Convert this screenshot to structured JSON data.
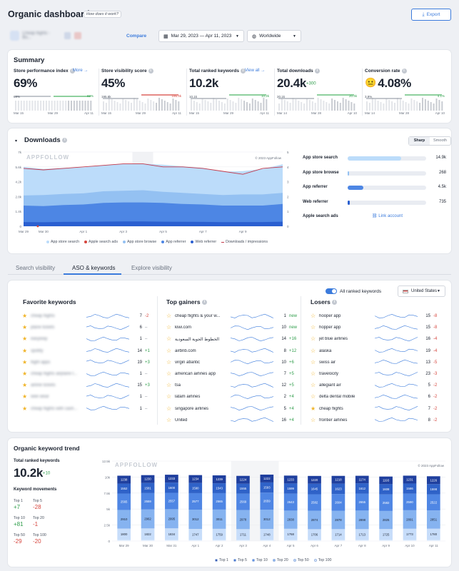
{
  "header": {
    "title": "Organic dashboard",
    "help_label": "How does it work?",
    "export_label": "Export"
  },
  "filters": {
    "app_name": "Cheap flights - Bo...",
    "compare_label": "Compare",
    "date_range": "Mar 29, 2023 — Apr 11, 2023",
    "region": "Worldwide"
  },
  "summary": {
    "title": "Summary",
    "metrics": [
      {
        "label": "Store performance index",
        "link": "More →",
        "value": "69%",
        "delta": "",
        "left_value": "69%",
        "right_value": "69%",
        "x_labels": [
          "Mar 15",
          "Mar 29",
          "Apr 11"
        ]
      },
      {
        "label": "Store visibility score",
        "link": "",
        "value": "45%",
        "delta": "",
        "left_value": "195.6k",
        "right_value": "195.4k",
        "x_labels": [
          "Mar 15",
          "Mar 29",
          "Apr 11"
        ]
      },
      {
        "label": "Total ranked keywords",
        "link": "View all →",
        "value": "10.2k",
        "delta": "",
        "left_value": "10.1k",
        "right_value": "10.2k",
        "x_labels": [
          "Mar 15",
          "Mar 29",
          "Apr 11"
        ]
      },
      {
        "label": "Total downloads",
        "link": "",
        "value": "20.4k",
        "delta": "+300",
        "left_value": "20.1k",
        "right_value": "20.4k",
        "x_labels": [
          "Mar 14",
          "Mar 28",
          "Apr 10"
        ]
      },
      {
        "label": "Conversion rate",
        "link": "",
        "value": "4.08%",
        "delta": "",
        "left_value": "3.9%",
        "right_value": "4.1%",
        "x_labels": [
          "Mar 14",
          "Mar 28",
          "Apr 10"
        ]
      }
    ]
  },
  "downloads": {
    "title": "Downloads",
    "toggle": [
      "Sharp",
      "Smooth"
    ],
    "watermark": "APPFOLLOW",
    "copyright": "© 2023 AppFollow",
    "legend": [
      "App store search",
      "Apple search ads",
      "App store browse",
      "App referrer",
      "Web referrer",
      "Downloads / impressions"
    ],
    "sources": [
      {
        "label": "App store search",
        "value": "14.9k",
        "pct": 0.68
      },
      {
        "label": "App store browse",
        "value": "268",
        "pct": 0.01
      },
      {
        "label": "App referrer",
        "value": "4.5k",
        "pct": 0.2
      },
      {
        "label": "Web referrer",
        "value": "735",
        "pct": 0.03
      },
      {
        "label": "Apple search ads",
        "value": "",
        "pct": 0
      }
    ],
    "link_account": "Link account"
  },
  "chart_data": [
    {
      "type": "area",
      "title": "",
      "x": [
        "Mar 29",
        "Mar 30",
        "Mar 31",
        "Apr 1",
        "Apr 2",
        "Apr 3",
        "Apr 4",
        "Apr 5",
        "Apr 6",
        "Apr 7",
        "Apr 8",
        "Apr 9",
        "Apr 10",
        "Apr 11"
      ],
      "x_ticks": [
        "Mar 29",
        "Mar 30",
        "Apr 1",
        "Apr 3",
        "Apr 5",
        "Apr 7",
        "Apr 9"
      ],
      "y_ticks": [
        "0",
        "1.4k",
        "2.8k",
        "4.2k",
        "5.6k",
        "7k"
      ],
      "y2_ticks": [
        "0",
        "1",
        "2",
        "3",
        "4",
        "5"
      ],
      "ylim": [
        0,
        7000
      ],
      "series": [
        {
          "name": "App store search",
          "values": [
            5600,
            5400,
            5500,
            5550,
            5750,
            5900,
            5900,
            5800,
            5650,
            5500,
            5150,
            5200,
            5400,
            5850
          ]
        },
        {
          "name": "App store browse",
          "values": [
            2900,
            2950,
            3050,
            3100,
            3300,
            3350,
            3400,
            3250,
            3150,
            3050,
            2950,
            3000,
            3000,
            3150
          ]
        },
        {
          "name": "App referrer",
          "values": [
            1950,
            1900,
            2000,
            2050,
            2200,
            2250,
            2250,
            2200,
            2100,
            2050,
            1950,
            1950,
            1950,
            2100
          ]
        },
        {
          "name": "Web referrer",
          "values": [
            400,
            380,
            410,
            420,
            440,
            450,
            450,
            430,
            420,
            410,
            390,
            400,
            400,
            430
          ]
        },
        {
          "name": "Downloads / impressions",
          "values": [
            3.9,
            3.8,
            3.9,
            4.0,
            4.1,
            4.2,
            4.2,
            4.0,
            4.0,
            3.9,
            3.7,
            3.5,
            3.9,
            4.0
          ]
        }
      ]
    },
    {
      "type": "bar",
      "title": "",
      "categories": [
        "Mar 29",
        "Mar 30",
        "Mar 31",
        "Apr 1",
        "Apr 2",
        "Apr 3",
        "Apr 4",
        "Apr 5",
        "Apr 6",
        "Apr 7",
        "Apr 8",
        "Apr 9",
        "Apr 10",
        "Apr 11"
      ],
      "y_ticks": [
        "0",
        "2.5k",
        "5k",
        "7.5k",
        "10k",
        "12.5k"
      ],
      "ylim": [
        0,
        12500
      ],
      "series": [
        {
          "name": "Top 1",
          "values": [
            1238,
            1230,
            1233,
            1234,
            1239,
            1224,
            1222,
            1233,
            1220,
            1218,
            1174,
            1193,
            1231,
            1226
          ]
        },
        {
          "name": "Top 5",
          "values": [
            1552,
            1581,
            1600,
            1590,
            1543,
            1555,
            1593,
            1599,
            1645,
            1623,
            1612,
            1608,
            1586,
            1598
          ]
        },
        {
          "name": "Top 10",
          "values": [
            2565,
            2559,
            2557,
            2577,
            2565,
            2569,
            2659,
            2643,
            2582,
            2604,
            2655,
            2582,
            2590,
            2522
          ]
        },
        {
          "name": "Top 20",
          "values": [
            2910,
            2962,
            2995,
            3012,
            3011,
            2978,
            3012,
            2838,
            2874,
            2878,
            2898,
            2825,
            2891,
            2851
          ]
        },
        {
          "name": "Top 50",
          "values": [
            1800,
            1822,
            1834,
            1747,
            1759,
            1711,
            1748,
            1768,
            1706,
            1714,
            1713,
            1725,
            1773,
            1780
          ]
        },
        {
          "name": "Top 100",
          "values": [
            150,
            150,
            150,
            150,
            150,
            150,
            150,
            150,
            150,
            150,
            150,
            150,
            150,
            150
          ]
        }
      ]
    }
  ],
  "keywords_tabs": {
    "tabs": [
      "Search visibility",
      "ASO & keywords",
      "Explore visibility"
    ],
    "active": 1
  },
  "keywords": {
    "toggle_label": "All ranked keywords",
    "country": "United States",
    "favorite": {
      "title": "Favorite keywords",
      "rows": [
        {
          "name": "cheap flights",
          "rank": "7",
          "chg": "-2"
        },
        {
          "name": "plane tickets",
          "rank": "6",
          "chg": "–"
        },
        {
          "name": "easyway",
          "rank": "1",
          "chg": "–"
        },
        {
          "name": "spotify",
          "rank": "14",
          "chg": "+1"
        },
        {
          "name": "flight apps",
          "rank": "19",
          "chg": "+3"
        },
        {
          "name": "cheap flights airplane t...",
          "rank": "1",
          "chg": "–"
        },
        {
          "name": "airline tickets",
          "rank": "15",
          "chg": "+3"
        },
        {
          "name": "wee wear",
          "rank": "1",
          "chg": "–"
        },
        {
          "name": "cheap flights with cash...",
          "rank": "1",
          "chg": "–"
        }
      ]
    },
    "gainers": {
      "title": "Top gainers",
      "rows": [
        {
          "name": "cheap flights & your w...",
          "rank": "1",
          "chg": "new"
        },
        {
          "name": "kiwi.com",
          "rank": "10",
          "chg": "new"
        },
        {
          "name": "الخطوط الجوية السعودية",
          "rank": "14",
          "chg": "+16"
        },
        {
          "name": "airbnb.com",
          "rank": "8",
          "chg": "+12"
        },
        {
          "name": "virgin atlantic",
          "rank": "10",
          "chg": "+6"
        },
        {
          "name": "american airlines app",
          "rank": "7",
          "chg": "+5"
        },
        {
          "name": "tsa",
          "rank": "12",
          "chg": "+5"
        },
        {
          "name": "latam airlines",
          "rank": "2",
          "chg": "+4"
        },
        {
          "name": "singapore airlines",
          "rank": "5",
          "chg": "+4"
        },
        {
          "name": "United",
          "rank": "16",
          "chg": "+4"
        }
      ]
    },
    "losers": {
      "title": "Losers",
      "rows": [
        {
          "name": "hooper app",
          "rank": "15",
          "chg": "-8"
        },
        {
          "name": "hopper app",
          "rank": "15",
          "chg": "-8"
        },
        {
          "name": "jet blue airlines",
          "rank": "16",
          "chg": "-4"
        },
        {
          "name": "alaska",
          "rank": "19",
          "chg": "-4"
        },
        {
          "name": "swiss air",
          "rank": "13",
          "chg": "-5"
        },
        {
          "name": "travelocity",
          "rank": "23",
          "chg": "-3"
        },
        {
          "name": "allegiant air",
          "rank": "5",
          "chg": "-2"
        },
        {
          "name": "delta dental mobile",
          "rank": "6",
          "chg": "-2"
        },
        {
          "name": "cheap flights",
          "rank": "7",
          "chg": "-2"
        },
        {
          "name": "frontier airlines",
          "rank": "8",
          "chg": "-2"
        }
      ]
    }
  },
  "trend": {
    "title": "Organic keyword trend",
    "total_label": "Total ranked keywords",
    "total_value": "10.2k",
    "total_delta": "+10",
    "movements_label": "Keyword movements",
    "movements": [
      {
        "label": "Top 1",
        "value": "+7",
        "color": "green"
      },
      {
        "label": "Top 5",
        "value": "-28",
        "color": "red"
      },
      {
        "label": "Top 10",
        "value": "+81",
        "color": "green"
      },
      {
        "label": "Top 20",
        "value": "-1",
        "color": "red"
      },
      {
        "label": "Top 50",
        "value": "-29",
        "color": "red"
      },
      {
        "label": "Top 100",
        "value": "-20",
        "color": "red"
      }
    ],
    "watermark": "APPFOLLOW",
    "copyright": "© 2023 AppFollow"
  },
  "colors": {
    "accent": "#3b7bdc",
    "green": "#2e9d4a",
    "red": "#d6453d",
    "star": "#f0b429"
  }
}
